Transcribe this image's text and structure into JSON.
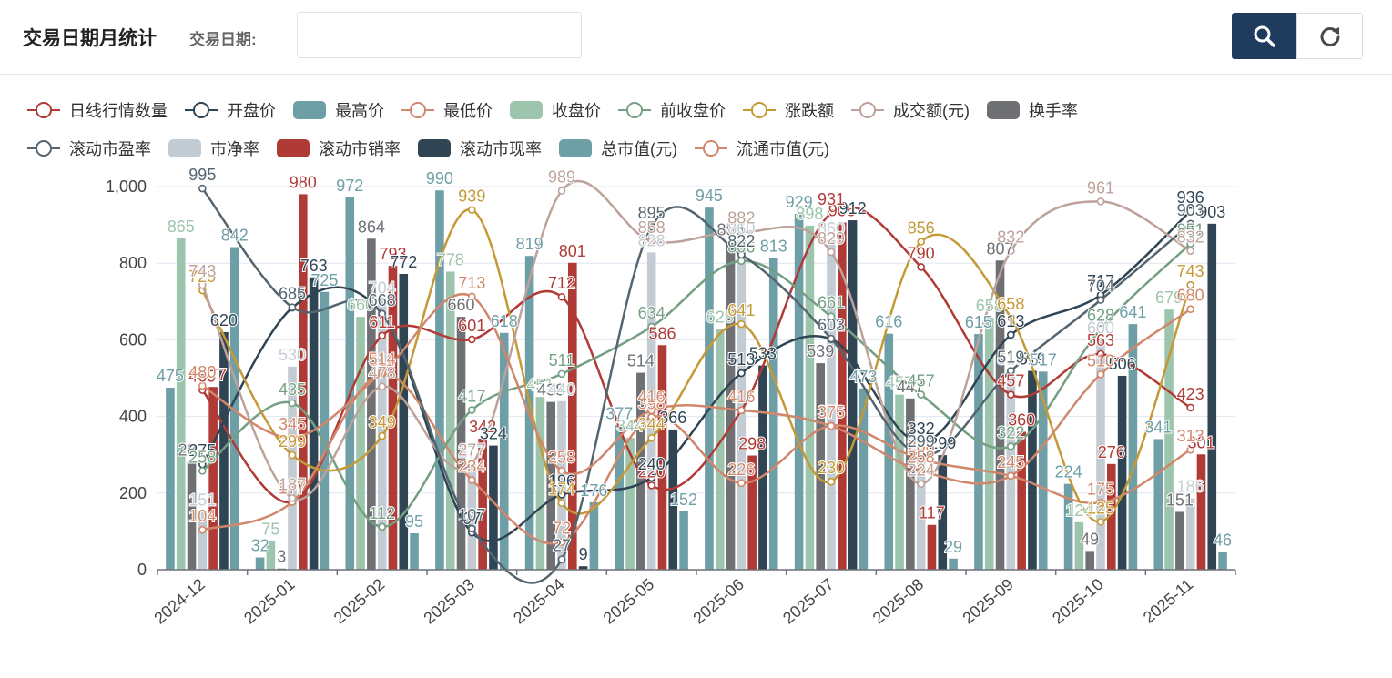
{
  "header": {
    "title": "交易日期月统计",
    "date_label": "交易日期:",
    "date_value": "",
    "date_placeholder": ""
  },
  "toolbar": {
    "search_icon": "search-icon",
    "refresh_icon": "refresh-icon"
  },
  "colors": {
    "header_button": "#1e3a5c",
    "series": [
      "#b03a36",
      "#2f4554",
      "#6e9ea6",
      "#d0876b",
      "#9dc5ad",
      "#749f83",
      "#c49936",
      "#bda29a",
      "#6e7074",
      "#546570",
      "#c4ccd3",
      "#b03a36",
      "#2f4554",
      "#6e9ea6",
      "#ca8622"
    ]
  },
  "chart_data": {
    "type": "bar+line",
    "categories": [
      "2024-12",
      "2025-01",
      "2025-02",
      "2025-03",
      "2025-04",
      "2025-05",
      "2025-06",
      "2025-07",
      "2025-08",
      "2025-09",
      "2025-10",
      "2025-11"
    ],
    "ylim": [
      0,
      1000
    ],
    "yticks": [
      "0",
      "200",
      "400",
      "600",
      "800",
      "1,000"
    ],
    "ytick_values": [
      0,
      200,
      400,
      600,
      800,
      1000
    ],
    "grid": true,
    "legend_position": "top-left",
    "series": [
      {
        "name": "日线行情数量",
        "type": "line",
        "color": "#b03a36",
        "values": [
          469,
          177,
          611,
          601,
          712,
          220,
          416,
          931,
          790,
          457,
          563,
          423
        ]
      },
      {
        "name": "开盘价",
        "type": "line",
        "color": "#2f4554",
        "values": [
          275,
          684,
          668,
          97,
          196,
          240,
          513,
          602,
          332,
          613,
          717,
          936
        ]
      },
      {
        "name": "最高价",
        "type": "bar",
        "color": "#6e9ea6",
        "values": [
          475,
          32,
          972,
          990,
          819,
          377,
          945,
          929,
          616,
          615,
          224,
          341
        ]
      },
      {
        "name": "最低价",
        "type": "line",
        "color": "#d0876b",
        "values": [
          104,
          177,
          511,
          234,
          72,
          398,
          226,
          376,
          288,
          245,
          175,
          313
        ]
      },
      {
        "name": "收盘价",
        "type": "bar",
        "color": "#9dc5ad",
        "values": [
          865,
          75,
          660,
          778,
          451,
          344,
          628,
          898,
          457,
          658,
          124,
          679
        ]
      },
      {
        "name": "前收盘价",
        "type": "line",
        "color": "#749f83",
        "values": [
          258,
          435,
          112,
          417,
          511,
          634,
          806,
          661,
          457,
          322,
          628,
          851
        ]
      },
      {
        "name": "涨跌额",
        "type": "line",
        "color": "#c49936",
        "values": [
          729,
          299,
          349,
          939,
          174,
          344,
          641,
          230,
          856,
          658,
          125,
          743
        ]
      },
      {
        "name": "成交额(元)",
        "type": "line",
        "color": "#bda29a",
        "values": [
          743,
          187,
          478,
          277,
          989,
          858,
          882,
          829,
          224,
          832,
          961,
          832
        ]
      },
      {
        "name": "换手率",
        "type": "bar",
        "color": "#6e7074",
        "values": [
          282,
          3,
          864,
          660,
          438,
          514,
          856,
          539,
          447,
          807,
          49,
          151
        ]
      },
      {
        "name": "滚动市盈率",
        "type": "line",
        "color": "#546570",
        "values": [
          995,
          685,
          668,
          107,
          27,
          895,
          822,
          603,
          299,
          519,
          704,
          903
        ]
      },
      {
        "name": "市净率",
        "type": "bar",
        "color": "#c4ccd3",
        "values": [
          151,
          530,
          704,
          277,
          440,
          828,
          860,
          860,
          296,
          519,
          600,
          186
        ]
      },
      {
        "name": "滚动市销率",
        "type": "bar",
        "color": "#b03a36",
        "values": [
          477,
          980,
          793,
          342,
          801,
          586,
          298,
          906,
          117,
          360,
          276,
          301
        ]
      },
      {
        "name": "滚动市现率",
        "type": "bar",
        "color": "#2f4554",
        "values": [
          620,
          763,
          772,
          324,
          9,
          366,
          533,
          912,
          299,
          519,
          506,
          903
        ]
      },
      {
        "name": "总市值(元)",
        "type": "bar",
        "color": "#6e9ea6",
        "values": [
          842,
          725,
          95,
          618,
          176,
          152,
          813,
          473,
          29,
          517,
          641,
          46
        ]
      },
      {
        "name": "流通市值(元)",
        "type": "line",
        "color": "#d0876b",
        "values": [
          480,
          345,
          514,
          713,
          258,
          416,
          416,
          375,
          258,
          245,
          510,
          680
        ]
      }
    ]
  }
}
